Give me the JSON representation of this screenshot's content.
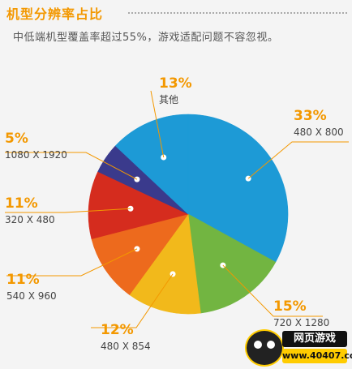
{
  "header": {
    "title": "机型分辨率占比",
    "subtitle": "中低端机型覆盖率超过55%，游戏适配问题不容忽视。"
  },
  "watermark": {
    "top_text": "网页游戏",
    "bottom_text": "www.40407.com"
  },
  "colors": {
    "title": "#f39800",
    "label_percent": "#f39800",
    "leader_line": "#f39800",
    "label_text": "#444444"
  },
  "chart_data": {
    "type": "pie",
    "slices": [
      {
        "label": "480 X 800",
        "value": 33,
        "value_label": "33%",
        "color": "#1d9ad6"
      },
      {
        "label": "720 X 1280",
        "value": 15,
        "value_label": "15%",
        "color": "#72b541"
      },
      {
        "label": "480 X 854",
        "value": 12,
        "value_label": "12%",
        "color": "#f2b91b"
      },
      {
        "label": "540 X 960",
        "value": 11,
        "value_label": "11%",
        "color": "#ed6a1d"
      },
      {
        "label": "320 X 480",
        "value": 11,
        "value_label": "11%",
        "color": "#d52c1e"
      },
      {
        "label": "1080 X 1920",
        "value": 5,
        "value_label": "5%",
        "color": "#3a3a8c"
      },
      {
        "label": "其他",
        "value": 13,
        "value_label": "13%",
        "color": "#1d9ad6"
      }
    ],
    "start_angle_deg": 0,
    "direction": "clockwise",
    "legend": "none"
  }
}
